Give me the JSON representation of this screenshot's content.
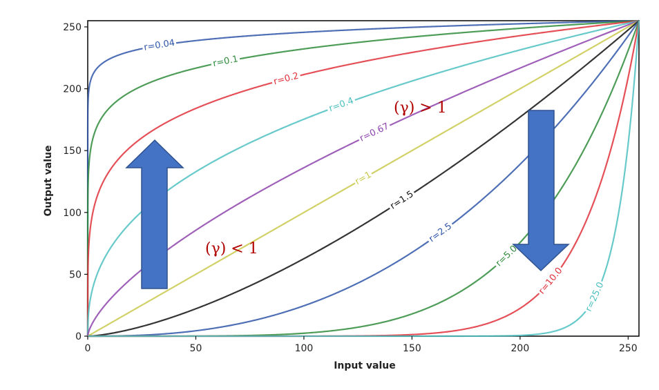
{
  "chart_data": {
    "type": "line",
    "title": "",
    "xlabel": "Input value",
    "ylabel": "Output value",
    "xlim": [
      0,
      255
    ],
    "ylim": [
      0,
      255
    ],
    "xticks": [
      "0",
      "50",
      "100",
      "150",
      "200",
      "250"
    ],
    "yticks": [
      "0",
      "50",
      "100",
      "150",
      "200",
      "250"
    ],
    "grid": false,
    "series": [
      {
        "name": "r=0.04",
        "gamma": 0.04,
        "color": "#2f56a8"
      },
      {
        "name": "r=0.1",
        "gamma": 0.1,
        "color": "#2e8b3a"
      },
      {
        "name": "r=0.2",
        "gamma": 0.2,
        "color": "#e0303a"
      },
      {
        "name": "r=0.4",
        "gamma": 0.4,
        "color": "#4cc0c0"
      },
      {
        "name": "r=0.67",
        "gamma": 0.67,
        "color": "#8e44ad"
      },
      {
        "name": "r=1",
        "gamma": 1.0,
        "color": "#c9c94e"
      },
      {
        "name": "r=1.5",
        "gamma": 1.5,
        "color": "#111111"
      },
      {
        "name": "r=2.5",
        "gamma": 2.5,
        "color": "#2f56a8"
      },
      {
        "name": "r=5.0",
        "gamma": 5.0,
        "color": "#2e8b3a"
      },
      {
        "name": "r=10.0",
        "gamma": 10.0,
        "color": "#e0303a"
      },
      {
        "name": "r=25.0",
        "gamma": 25.0,
        "color": "#4cc0c0"
      }
    ],
    "annotations": [
      {
        "text": "(γ) > 1"
      },
      {
        "text": "(γ) < 1"
      }
    ],
    "arrow_color": "#4472c4",
    "arrow_border": "#2f528f"
  }
}
